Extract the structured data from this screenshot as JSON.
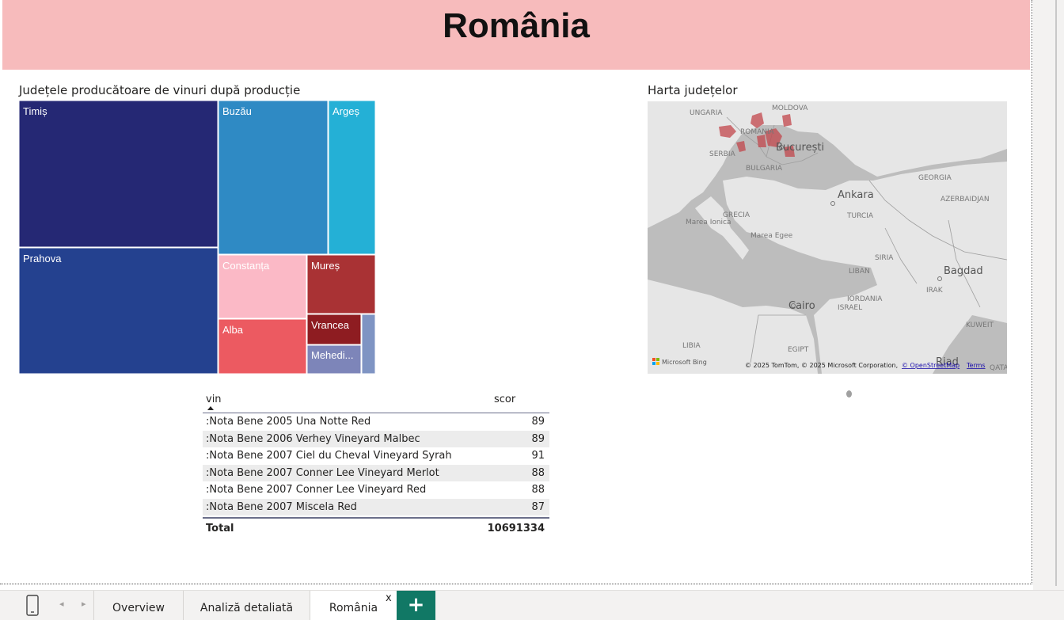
{
  "header": {
    "title": "România"
  },
  "treemap": {
    "title": "Județele producătoare de vinuri după producție",
    "tiles": [
      {
        "label": "Timiș",
        "color": "#252874"
      },
      {
        "label": "Prahova",
        "color": "#24418f"
      },
      {
        "label": "Buzău",
        "color": "#2f8ac4"
      },
      {
        "label": "Argeș",
        "color": "#24b0d6"
      },
      {
        "label": "Constanța",
        "color": "#fbb9c6"
      },
      {
        "label": "Mureș",
        "color": "#a93234"
      },
      {
        "label": "Alba",
        "color": "#ec5a61"
      },
      {
        "label": "Vrancea",
        "color": "#8e1c21"
      },
      {
        "label": "Mehedi...",
        "color": "#7d85b9"
      },
      {
        "label": "",
        "color": "#7f94c3"
      }
    ]
  },
  "map": {
    "title": "Harta județelor",
    "labels": {
      "ungaria": "UNGARIA",
      "moldova": "MOLDOVA",
      "romania": "ROMANIA",
      "bucuresti": "București",
      "serbia": "SERBIA",
      "bulgaria": "BULGARIA",
      "georgia": "GEORGIA",
      "azerbaidjan": "AZERBAIDJAN",
      "ankara": "Ankara",
      "turcia": "TURCIA",
      "grecia": "GRECIA",
      "marea_ionica": "Marea Ionica",
      "marea_egee": "Marea Egee",
      "siria": "SIRIA",
      "liban": "LIBAN",
      "bagdad": "Bagdad",
      "irak": "IRAK",
      "iordania": "IORDANIA",
      "israel": "ISRAEL",
      "cairo": "Cairo",
      "kuweit": "KUWEIT",
      "libia": "LIBIA",
      "egipt": "EGIPT",
      "riad": "Riad",
      "qatar": "QATA"
    },
    "bing_logo": "Microsoft Bing",
    "copyright": "© 2025 TomTom, © 2025 Microsoft Corporation,",
    "osm_link": "© OpenStreetMap",
    "terms_link": "Terms"
  },
  "table": {
    "headers": {
      "vin": "vin",
      "scor": "scor"
    },
    "rows": [
      {
        "vin": ":Nota Bene 2005 Una Notte Red",
        "scor": "89"
      },
      {
        "vin": ":Nota Bene 2006 Verhey Vineyard Malbec",
        "scor": "89"
      },
      {
        "vin": ":Nota Bene 2007 Ciel du Cheval Vineyard Syrah",
        "scor": "91"
      },
      {
        "vin": ":Nota Bene 2007 Conner Lee Vineyard Merlot",
        "scor": "88"
      },
      {
        "vin": ":Nota Bene 2007 Conner Lee Vineyard Red",
        "scor": "88"
      },
      {
        "vin": ":Nota Bene 2007 Miscela Red",
        "scor": "87"
      }
    ],
    "total_label": "Total",
    "total_value": "10691334"
  },
  "tabs": {
    "items": [
      "Overview",
      "Analiză detaliată",
      "România"
    ],
    "close": "x",
    "add": "+"
  }
}
